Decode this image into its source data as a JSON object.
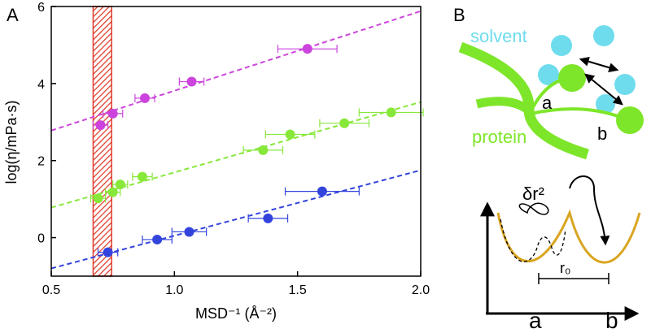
{
  "panel_labels": [
    "A",
    "B"
  ],
  "chart_data": {
    "type": "scatter",
    "x_label": "MSD⁻¹ (Å⁻²)",
    "y_label": "log(η/mPa·s)",
    "xlim": [
      0.5,
      2.0
    ],
    "ylim": [
      -1,
      6
    ],
    "xticks": [
      0.5,
      {
        "value": 1.0,
        "label": "1.0"
      },
      1.5,
      {
        "value": 2.0,
        "label": "2.0"
      }
    ],
    "yticks": [
      0,
      2,
      4,
      6
    ],
    "band": {
      "x": [
        0.67,
        0.745
      ],
      "color": "#e03a2a"
    },
    "series": [
      {
        "color": "#cc44dd",
        "x": [
          0.7,
          0.75,
          0.88,
          1.07,
          1.54
        ],
        "values": [
          2.92,
          3.22,
          3.62,
          4.05,
          4.9
        ],
        "xerr": [
          0.03,
          0.04,
          0.04,
          0.05,
          0.12
        ],
        "fit": {
          "x": [
            0.5,
            2.0
          ],
          "values": [
            2.78,
            5.88
          ]
        }
      },
      {
        "color": "#88e83a",
        "x": [
          0.69,
          0.75,
          0.78,
          0.87,
          1.36,
          1.47,
          1.69,
          1.88
        ],
        "values": [
          1.02,
          1.18,
          1.38,
          1.58,
          2.27,
          2.68,
          2.97,
          3.25
        ],
        "xerr": [
          0.03,
          0.03,
          0.03,
          0.04,
          0.08,
          0.1,
          0.1,
          0.13
        ],
        "fit": {
          "x": [
            0.5,
            2.0
          ],
          "values": [
            0.78,
            3.52
          ]
        }
      },
      {
        "color": "#3344dd",
        "x": [
          0.73,
          0.93,
          1.06,
          1.38,
          1.6
        ],
        "values": [
          -0.38,
          -0.05,
          0.15,
          0.5,
          1.2
        ],
        "xerr": [
          0.04,
          0.06,
          0.07,
          0.08,
          0.15
        ],
        "fit": {
          "x": [
            0.5,
            2.0
          ],
          "values": [
            -0.8,
            1.75
          ]
        }
      }
    ]
  },
  "diagram": {
    "solvent": "solvent",
    "protein": "protein",
    "a_top": "a",
    "b_top": "b",
    "dr": "δr²",
    "r0": "r₀",
    "a_bottom": "a",
    "b_bottom": "b"
  }
}
